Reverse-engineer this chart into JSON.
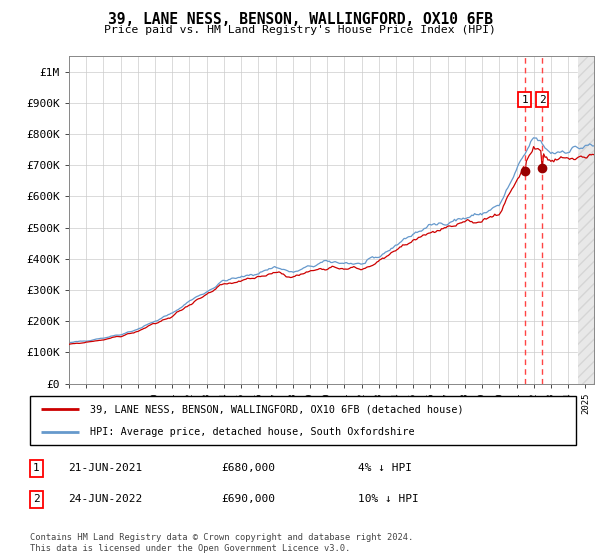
{
  "title": "39, LANE NESS, BENSON, WALLINGFORD, OX10 6FB",
  "subtitle": "Price paid vs. HM Land Registry's House Price Index (HPI)",
  "legend_line1": "39, LANE NESS, BENSON, WALLINGFORD, OX10 6FB (detached house)",
  "legend_line2": "HPI: Average price, detached house, South Oxfordshire",
  "annotation1_date": "21-JUN-2021",
  "annotation1_price": "£680,000",
  "annotation1_hpi": "4% ↓ HPI",
  "annotation2_date": "24-JUN-2022",
  "annotation2_price": "£690,000",
  "annotation2_hpi": "10% ↓ HPI",
  "footer": "Contains HM Land Registry data © Crown copyright and database right 2024.\nThis data is licensed under the Open Government Licence v3.0.",
  "hpi_color": "#6699cc",
  "price_color": "#cc0000",
  "marker_color": "#990000",
  "dashed_line_color": "#ff4444",
  "background_color": "#ffffff",
  "grid_color": "#cccccc",
  "ylim": [
    0,
    1050000
  ],
  "sale1_year": 2021.47,
  "sale1_price": 680000,
  "sale2_year": 2022.48,
  "sale2_price": 690000,
  "xmin": 1995,
  "xmax": 2025.5
}
